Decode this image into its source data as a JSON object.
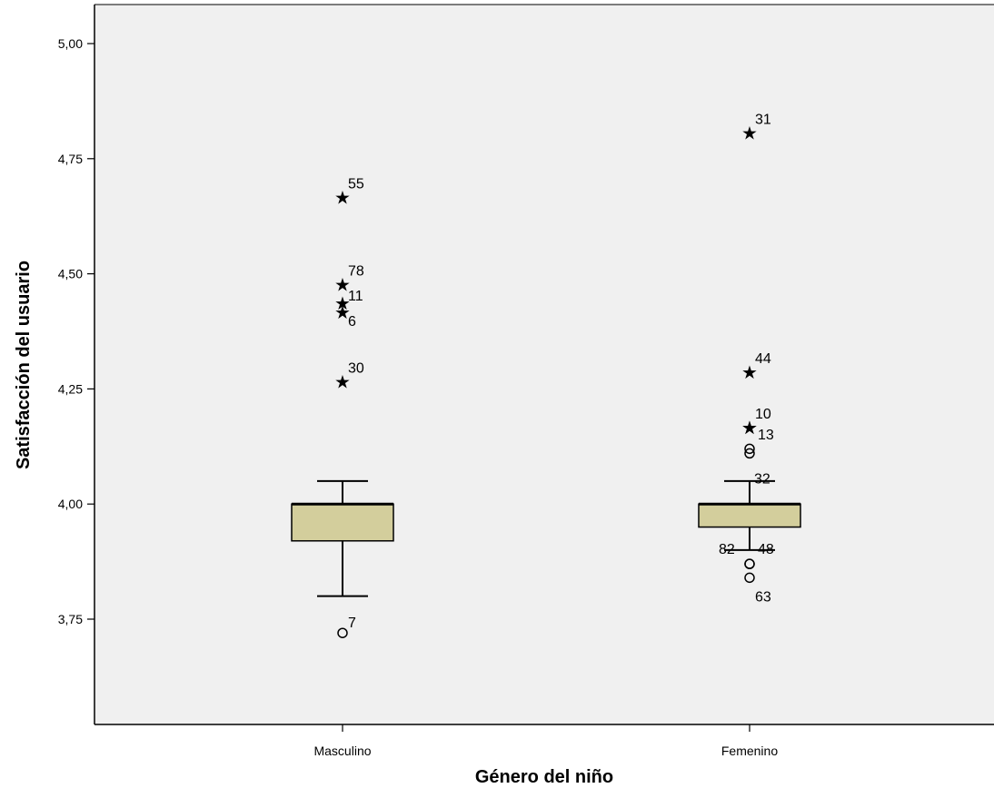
{
  "chart_data": {
    "type": "boxplot",
    "xlabel": "Género del niño",
    "ylabel": "Satisfacción del usuario",
    "ylim": [
      3.47,
      5.08
    ],
    "yticks": [
      "3,75",
      "4,00",
      "4,25",
      "4,50",
      "4,75",
      "5,00"
    ],
    "ytick_values": [
      3.75,
      4.0,
      4.25,
      4.5,
      4.75,
      5.0
    ],
    "grid": false,
    "colors": {
      "plot_bg": "#f0f0f0",
      "box_fill": "#d3ce9c",
      "stroke": "#000000"
    },
    "groups": [
      {
        "category": "Masculino",
        "whisker_low": 3.8,
        "q1": 3.92,
        "median": 4.0,
        "q3": 4.0,
        "whisker_high": 4.05,
        "outliers": [
          {
            "label": "7",
            "value": 3.72,
            "marker": "circle"
          }
        ],
        "extremes": [
          {
            "label": "55",
            "value": 4.67
          },
          {
            "label": "78",
            "value": 4.48
          },
          {
            "label": "11",
            "value": 4.44
          },
          {
            "label": "6",
            "value": 4.42
          },
          {
            "label": "30",
            "value": 4.27
          }
        ]
      },
      {
        "category": "Femenino",
        "whisker_low": 3.9,
        "q1": 3.95,
        "median": 4.0,
        "q3": 4.0,
        "whisker_high": 4.05,
        "outliers": [
          {
            "label": "32",
            "value": 4.12,
            "marker": "circle"
          },
          {
            "label": "",
            "value": 4.11,
            "marker": "circle"
          },
          {
            "label": "82",
            "value": 3.87,
            "marker": "circle"
          },
          {
            "label": "48",
            "value": 3.87,
            "marker": "circle"
          },
          {
            "label": "63",
            "value": 3.84,
            "marker": "circle"
          }
        ],
        "extremes": [
          {
            "label": "31",
            "value": 4.81
          },
          {
            "label": "44",
            "value": 4.29
          },
          {
            "label": "10",
            "value": 4.17
          },
          {
            "label": "13",
            "value": 4.17
          }
        ]
      }
    ]
  }
}
